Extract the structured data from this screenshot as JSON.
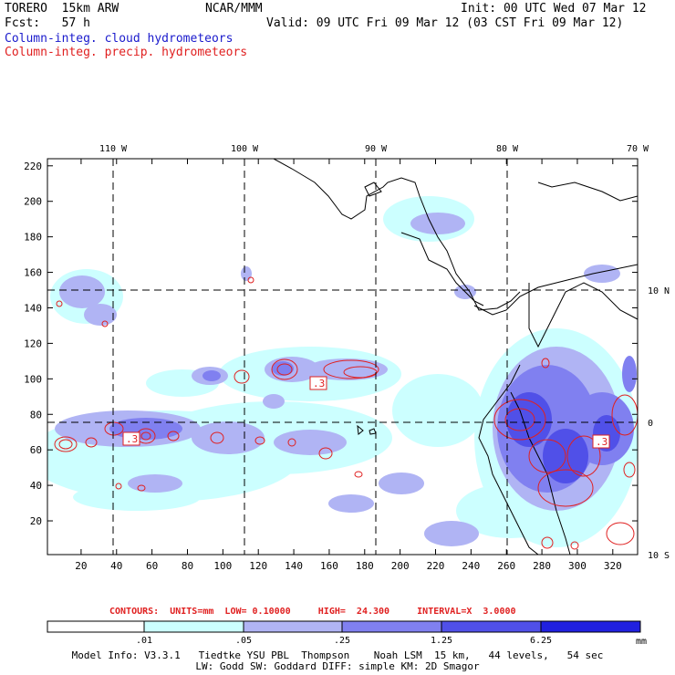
{
  "header": {
    "model": "TORERO  15km ARW",
    "org": "NCAR/MMM",
    "init": "Init: 00 UTC Wed 07 Mar 12",
    "fcst": "Fcst:   57 h",
    "valid": "Valid: 09 UTC Fri 09 Mar 12 (03 CST Fri 09 Mar 12)",
    "field1": "Column-integ. cloud hydrometeors",
    "field2": "Column-integ. precip. hydrometeors"
  },
  "colors": {
    "field1": "#1a1acc",
    "field2": "#e02020",
    "shade_pale": "#ccffff",
    "shade_light": "#b0b4f4",
    "shade_mid": "#8080f0",
    "shade_dark": "#5050e8",
    "shade_deep": "#2020e0",
    "contour": "#e02020"
  },
  "axes": {
    "x_ticks": [
      "20",
      "40",
      "60",
      "80",
      "100",
      "120",
      "140",
      "160",
      "180",
      "200",
      "220",
      "240",
      "260",
      "280",
      "300",
      "320"
    ],
    "y_ticks": [
      "20",
      "40",
      "60",
      "80",
      "100",
      "120",
      "140",
      "160",
      "180",
      "200",
      "220"
    ],
    "lon_labels": [
      "110 W",
      "100 W",
      "90 W",
      "80 W",
      "70 W"
    ],
    "lat_labels": [
      "10 N",
      "0",
      "10 S"
    ]
  },
  "map_labels": {
    "contour_box_a": ".3",
    "contour_box_b": ".3",
    "contour_box_c": ".3"
  },
  "contours_info": "CONTOURS:  UNITS=mm  LOW= 0.10000     HIGH=  24.300     INTERVAL=X  3.0000",
  "colorbar": {
    "labels": [
      ".01",
      ".05",
      ".25",
      "1.25",
      "6.25"
    ],
    "unit": "mm"
  },
  "footer": {
    "line1": "Model Info: V3.3.1   Tiedtke YSU PBL  Thompson    Noah LSM  15 km,   44 levels,   54 sec",
    "line2": "LW: Godd SW: Goddard DIFF: simple KM: 2D Smagor"
  }
}
